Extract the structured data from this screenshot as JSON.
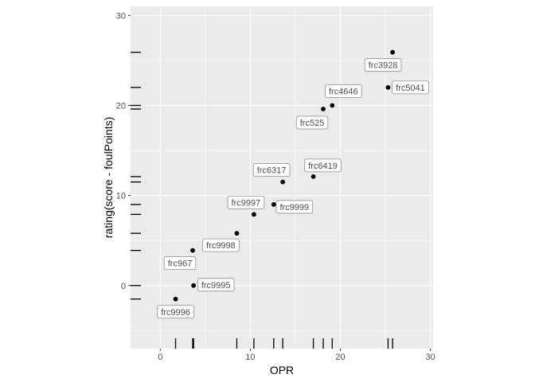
{
  "chart_data": {
    "type": "scatter",
    "xlabel": "OPR",
    "ylabel": "rating(score - foulPoints)",
    "xlim": [
      -3.3,
      30.3
    ],
    "ylim": [
      -7,
      31
    ],
    "x_ticks": [
      0,
      10,
      20,
      30
    ],
    "y_ticks": [
      0,
      10,
      20,
      30
    ],
    "grid": true,
    "rug": true,
    "points": [
      {
        "label": "frc9996",
        "x": 1.7,
        "y": -1.5
      },
      {
        "label": "frc9995",
        "x": 3.7,
        "y": 0.0
      },
      {
        "label": "frc967",
        "x": 3.6,
        "y": 3.9
      },
      {
        "label": "frc9998",
        "x": 8.5,
        "y": 5.8
      },
      {
        "label": "frc9997",
        "x": 10.4,
        "y": 7.9
      },
      {
        "label": "frc9999",
        "x": 12.6,
        "y": 9.0
      },
      {
        "label": "frc6317",
        "x": 13.6,
        "y": 11.5
      },
      {
        "label": "frc6419",
        "x": 17.0,
        "y": 12.1
      },
      {
        "label": "frc525",
        "x": 18.1,
        "y": 19.6
      },
      {
        "label": "frc4646",
        "x": 19.1,
        "y": 20.0
      },
      {
        "label": "frc5041",
        "x": 25.3,
        "y": 22.0
      },
      {
        "label": "frc3928",
        "x": 25.8,
        "y": 25.9
      }
    ],
    "colors": {
      "panel": "#ebebeb",
      "grid": "#ffffff",
      "point": "#000000",
      "label_border": "#8c8c8c",
      "label_text": "#4d4d4d"
    }
  }
}
